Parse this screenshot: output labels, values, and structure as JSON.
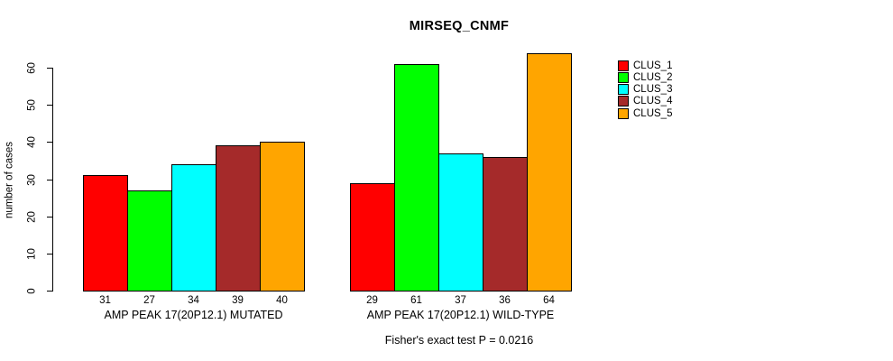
{
  "title": "MIRSEQ_CNMF",
  "y_axis_label": "number of cases",
  "footer_note": "Fisher's exact test P = 0.0216",
  "chart_data": {
    "type": "bar",
    "title": "MIRSEQ_CNMF",
    "xlabel": "",
    "ylabel": "number of cases",
    "ylim": [
      0,
      60
    ],
    "yticks": [
      0,
      10,
      20,
      30,
      40,
      50,
      60
    ],
    "grid": false,
    "legend_position": "right",
    "bar_value_labels": true,
    "categories": [
      "AMP PEAK 17(20P12.1) MUTATED",
      "AMP PEAK 17(20P12.1) WILD-TYPE"
    ],
    "series": [
      {
        "name": "CLUS_1",
        "color": "#FF0000",
        "values": [
          31,
          29
        ]
      },
      {
        "name": "CLUS_2",
        "color": "#00FF00",
        "values": [
          27,
          61
        ]
      },
      {
        "name": "CLUS_3",
        "color": "#00FFFF",
        "values": [
          34,
          37
        ]
      },
      {
        "name": "CLUS_4",
        "color": "#A52A2A",
        "values": [
          39,
          36
        ]
      },
      {
        "name": "CLUS_5",
        "color": "#FFA500",
        "values": [
          40,
          64
        ]
      }
    ],
    "annotation": "Fisher's exact test P = 0.0216"
  }
}
